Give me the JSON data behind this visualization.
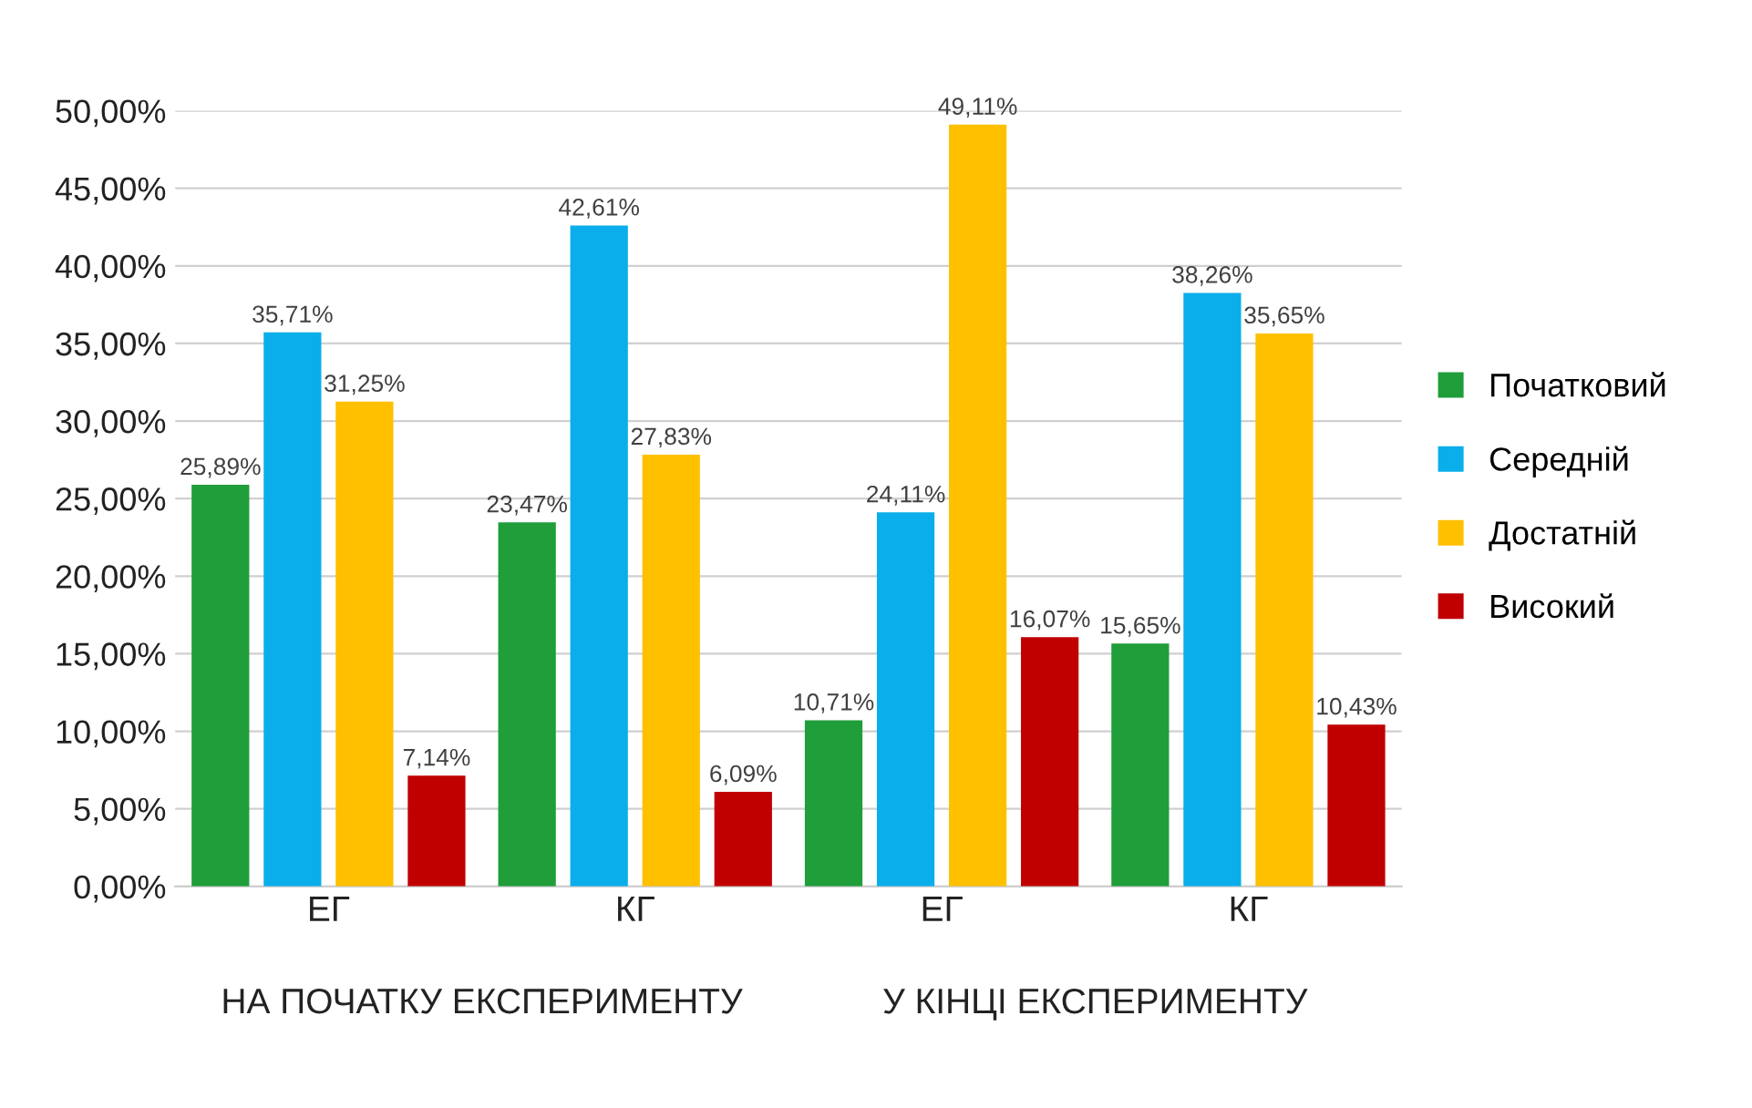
{
  "chart_data": {
    "type": "bar",
    "categories": [
      "ЕГ",
      "КГ",
      "ЕГ",
      "КГ"
    ],
    "series": [
      {
        "name": "Початковий",
        "color": "#1f9e3a",
        "values": [
          25.89,
          23.47,
          10.71,
          15.65
        ],
        "value_labels": [
          "25,89%",
          "23,47%",
          "10,71%",
          "15,65%"
        ]
      },
      {
        "name": "Середній",
        "color": "#0aaeea",
        "values": [
          35.71,
          42.61,
          24.11,
          38.26
        ],
        "value_labels": [
          "35,71%",
          "42,61%",
          "24,11%",
          "38,26%"
        ]
      },
      {
        "name": "Достатній",
        "color": "#ffc000",
        "values": [
          31.25,
          27.83,
          49.11,
          35.65
        ],
        "value_labels": [
          "31,25%",
          "27,83%",
          "49,11%",
          "35,65%"
        ]
      },
      {
        "name": "Високий",
        "color": "#c00000",
        "values": [
          7.14,
          6.09,
          16.07,
          10.43
        ],
        "value_labels": [
          "7,14%",
          "6,09%",
          "16,07%",
          "10,43%"
        ]
      }
    ],
    "ylim": [
      0,
      50
    ],
    "yticks": [
      {
        "value": 0,
        "label": "0,00%"
      },
      {
        "value": 5,
        "label": "5,00%"
      },
      {
        "value": 10,
        "label": "10,00%"
      },
      {
        "value": 15,
        "label": "15,00%"
      },
      {
        "value": 20,
        "label": "20,00%"
      },
      {
        "value": 25,
        "label": "25,00%"
      },
      {
        "value": 30,
        "label": "30,00%"
      },
      {
        "value": 35,
        "label": "35,00%"
      },
      {
        "value": 40,
        "label": "40,00%"
      },
      {
        "value": 45,
        "label": "45,00%"
      },
      {
        "value": 50,
        "label": "50,00%"
      }
    ],
    "grid": "y",
    "legend": "right",
    "annotations": [
      "НА ПОЧАТКУ ЕКСПЕРИМЕНТУ",
      "У КІНЦІ ЕКСПЕРИМЕНТУ"
    ]
  }
}
